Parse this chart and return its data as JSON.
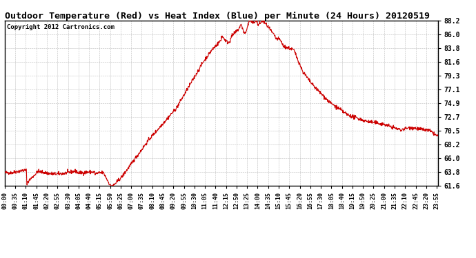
{
  "title": "Outdoor Temperature (Red) vs Heat Index (Blue) per Minute (24 Hours) 20120519",
  "copyright": "Copyright 2012 Cartronics.com",
  "bg_color": "#ffffff",
  "grid_color": "#aaaaaa",
  "line_color_temp": "#cc0000",
  "line_color_heat": "#0000cc",
  "ymin": 61.6,
  "ymax": 88.2,
  "yticks": [
    61.6,
    63.8,
    66.0,
    68.2,
    70.5,
    72.7,
    74.9,
    77.1,
    79.3,
    81.6,
    83.8,
    86.0,
    88.2
  ],
  "title_fontsize": 9.5,
  "copyright_fontsize": 6.5,
  "tick_fontsize": 6,
  "ytick_fontsize": 7
}
